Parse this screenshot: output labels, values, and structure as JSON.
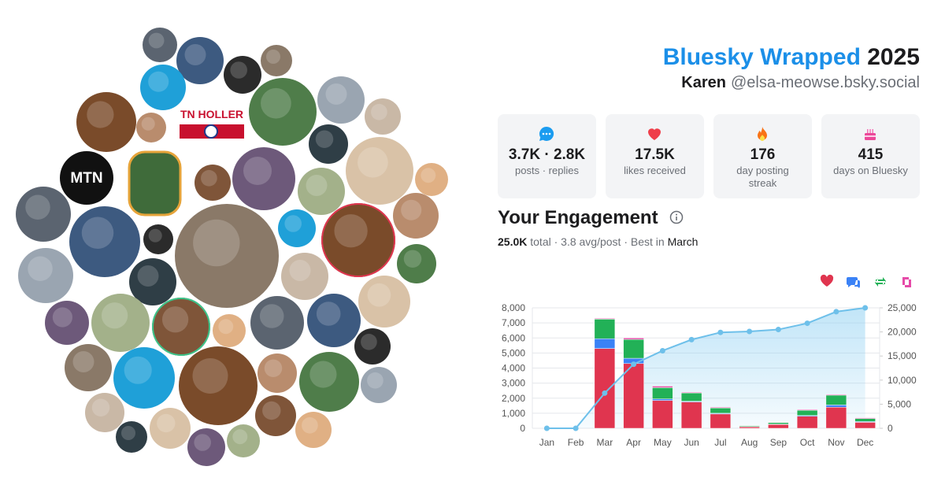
{
  "header": {
    "brand": "Bluesky Wrapped",
    "year": "2025",
    "name": "Karen",
    "handle": "@elsa-meowse.bsky.social"
  },
  "avatar_labels": [
    "TN HOLLER",
    "MTN"
  ],
  "stats": [
    {
      "value": "3.7K · 2.8K",
      "label": "posts · replies"
    },
    {
      "value": "17.5K",
      "label": "likes received"
    },
    {
      "value": "176",
      "label": "day posting streak"
    },
    {
      "value": "415",
      "label": "days on Bluesky"
    }
  ],
  "chart_data": {
    "type": "bar",
    "stacked": true,
    "grid": true,
    "title": "Your Engagement",
    "subtitle": [
      "25.0K",
      "total · 3.8 avg/post · Best in",
      "March"
    ],
    "categories": [
      "Jan",
      "Feb",
      "Mar",
      "Apr",
      "May",
      "Jun",
      "Jul",
      "Aug",
      "Sep",
      "Oct",
      "Nov",
      "Dec"
    ],
    "series": [
      {
        "color": "#e0354f",
        "values": [
          0,
          0,
          5300,
          4300,
          1850,
          1750,
          950,
          100,
          250,
          800,
          1400,
          400
        ]
      },
      {
        "color": "#3b82f6",
        "values": [
          0,
          0,
          650,
          350,
          100,
          50,
          50,
          20,
          30,
          50,
          150,
          50
        ]
      },
      {
        "color": "#22b157",
        "values": [
          0,
          0,
          1300,
          1250,
          750,
          550,
          350,
          60,
          100,
          350,
          650,
          200
        ]
      },
      {
        "color": "#e64aa8",
        "values": [
          0,
          0,
          50,
          100,
          100,
          50,
          50,
          20,
          20,
          50,
          50,
          50
        ]
      },
      {
        "type": "line",
        "axis": "y2",
        "color": "#6ec0ea",
        "values": [
          0,
          0,
          7300,
          13300,
          16100,
          18400,
          19900,
          20100,
          20500,
          21800,
          24200,
          25000
        ]
      }
    ],
    "ylim": [
      0,
      8000
    ],
    "yticks": [
      0,
      {
        "value": 1000,
        "label": "1,000"
      },
      {
        "value": 2000,
        "label": "2,000"
      },
      {
        "value": 3000,
        "label": "3,000"
      },
      {
        "value": 4000,
        "label": "4,000"
      },
      {
        "value": 5000,
        "label": "5,000"
      },
      {
        "value": 6000,
        "label": "6,000"
      },
      {
        "value": 7000,
        "label": "7,000"
      },
      {
        "value": 8000,
        "label": "8,000"
      }
    ],
    "y2lim": [
      0,
      25000
    ],
    "y2ticks": [
      0,
      {
        "value": 5000,
        "label": "5,000"
      },
      {
        "value": 10000,
        "label": "10,000"
      },
      {
        "value": 15000,
        "label": "15,000"
      },
      {
        "value": 20000,
        "label": "20,000"
      },
      {
        "value": 25000,
        "label": "25,000"
      }
    ]
  }
}
